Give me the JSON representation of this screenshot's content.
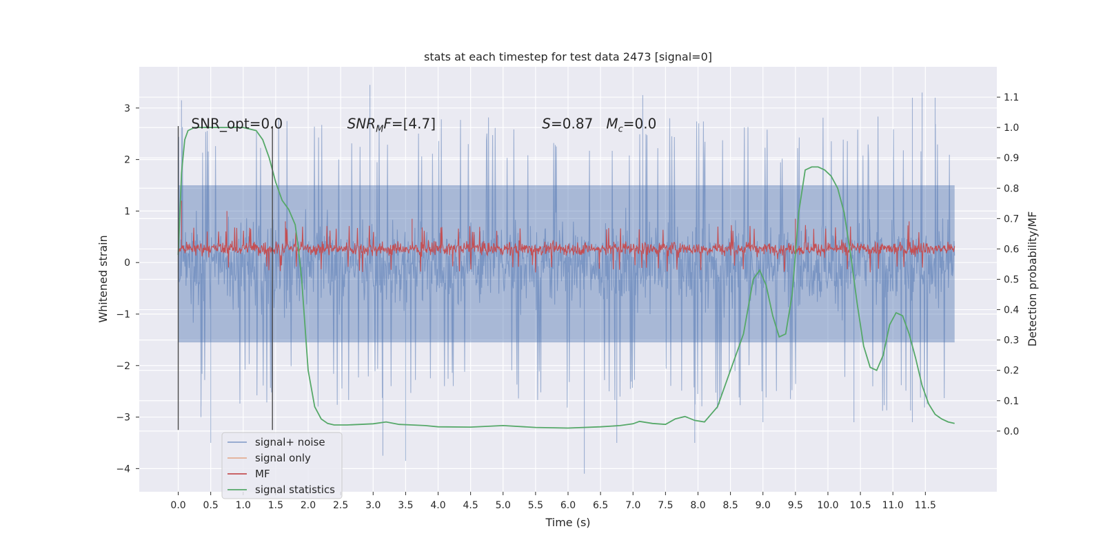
{
  "chart_data": {
    "type": "line",
    "title": "stats at each timestep for test data 2473 [signal=0]",
    "xlabel": "Time (s)",
    "ylabel": "Whitened strain",
    "y2label": "Detection probability/MF",
    "xlim": [
      -0.6,
      12.6
    ],
    "ylim": [
      -4.45,
      3.8
    ],
    "y2lim": [
      -0.2,
      1.2
    ],
    "x_ticks": [
      0.0,
      0.5,
      1.0,
      1.5,
      2.0,
      2.5,
      3.0,
      3.5,
      4.0,
      4.5,
      5.0,
      5.5,
      6.0,
      6.5,
      7.0,
      7.5,
      8.0,
      8.5,
      9.0,
      9.5,
      10.0,
      10.5,
      11.0,
      11.5
    ],
    "x_tick_labels": [
      "0.0",
      "0.5",
      "1.0",
      "1.5",
      "2.0",
      "2.5",
      "3.0",
      "3.5",
      "4.0",
      "4.5",
      "5.0",
      "5.5",
      "6.0",
      "6.5",
      "7.0",
      "7.5",
      "8.0",
      "8.5",
      "9.0",
      "9.5",
      "10.0",
      "10.5",
      "11.0",
      "11.5"
    ],
    "y_ticks": [
      -4,
      -3,
      -2,
      -1,
      0,
      1,
      2,
      3
    ],
    "y_tick_labels": [
      "−4",
      "−3",
      "−2",
      "−1",
      "0",
      "1",
      "2",
      "3"
    ],
    "y2_ticks": [
      0.0,
      0.1,
      0.2,
      0.3,
      0.4,
      0.5,
      0.6,
      0.7,
      0.8,
      0.9,
      1.0,
      1.1
    ],
    "y2_tick_labels": [
      "0.0",
      "0.1",
      "0.2",
      "0.3",
      "0.4",
      "0.5",
      "0.6",
      "0.7",
      "0.8",
      "0.9",
      "1.0",
      "1.1"
    ],
    "grid": true,
    "legend_position": "bottom-left",
    "annotations": [
      {
        "text": "SNR_opt=0.0",
        "x": 0.2,
        "y": 2.6
      },
      {
        "text": "SNR_MF=[4.7]",
        "x": 2.6,
        "y": 2.6
      },
      {
        "text": "S=0.87   M_c=0.0",
        "x": 5.6,
        "y": 2.6
      }
    ],
    "vertical_markers": [
      {
        "x": 0.0,
        "y_from": -3.25,
        "y_to": 2.65
      },
      {
        "x": 1.45,
        "y_from": -3.25,
        "y_to": 2.65
      }
    ],
    "series": [
      {
        "name": "signal+ noise",
        "color": "#4c72b0",
        "axis": "left",
        "style": "dense-noise",
        "x_range": [
          0.0,
          11.95
        ],
        "envelope_typical": [
          -1.55,
          1.5
        ],
        "extremes": [
          [
            0.05,
            3.15
          ],
          [
            0.5,
            -3.5
          ],
          [
            0.35,
            -3.0
          ],
          [
            2.95,
            3.45
          ],
          [
            3.15,
            -3.75
          ],
          [
            3.5,
            -3.85
          ],
          [
            6.25,
            -4.1
          ],
          [
            6.75,
            -3.5
          ],
          [
            7.15,
            3.25
          ],
          [
            7.95,
            -3.5
          ],
          [
            9.0,
            -3.1
          ],
          [
            10.4,
            -3.1
          ],
          [
            11.3,
            -3.1
          ],
          [
            11.3,
            3.2
          ],
          [
            11.45,
            3.3
          ],
          [
            11.65,
            3.2
          ]
        ]
      },
      {
        "name": "signal only",
        "color": "#dd8452",
        "axis": "left",
        "values": []
      },
      {
        "name": "MF",
        "color": "#c44e52",
        "axis": "left",
        "style": "dense-noise",
        "x_range": [
          0.0,
          11.95
        ],
        "envelope_typical": [
          0.0,
          0.55
        ],
        "extremes": [
          [
            0.75,
            1.0
          ],
          [
            0.05,
            1.2
          ],
          [
            3.6,
            0.85
          ],
          [
            1.65,
            0.8
          ],
          [
            9.5,
            0.85
          ],
          [
            11.25,
            0.8
          ]
        ]
      },
      {
        "name": "signal statistics",
        "color": "#55a868",
        "axis": "right",
        "x": [
          0.0,
          0.05,
          0.1,
          0.15,
          0.25,
          0.4,
          0.6,
          0.8,
          1.0,
          1.2,
          1.3,
          1.4,
          1.5,
          1.6,
          1.7,
          1.8,
          1.85,
          1.9,
          1.95,
          2.0,
          2.1,
          2.2,
          2.3,
          2.4,
          2.6,
          2.8,
          3.0,
          3.2,
          3.4,
          3.6,
          3.8,
          4.0,
          4.5,
          5.0,
          5.5,
          6.0,
          6.5,
          6.8,
          7.0,
          7.1,
          7.3,
          7.5,
          7.65,
          7.8,
          7.95,
          8.1,
          8.3,
          8.5,
          8.7,
          8.85,
          8.95,
          9.05,
          9.15,
          9.25,
          9.35,
          9.45,
          9.55,
          9.65,
          9.75,
          9.85,
          9.95,
          10.05,
          10.15,
          10.25,
          10.35,
          10.45,
          10.55,
          10.65,
          10.75,
          10.85,
          10.95,
          11.05,
          11.15,
          11.25,
          11.35,
          11.45,
          11.55,
          11.65,
          11.75,
          11.85,
          11.95
        ],
        "values": [
          0.58,
          0.85,
          0.96,
          0.99,
          1.0,
          1.0,
          1.0,
          1.0,
          1.0,
          0.99,
          0.96,
          0.9,
          0.82,
          0.76,
          0.73,
          0.68,
          0.6,
          0.5,
          0.35,
          0.2,
          0.08,
          0.04,
          0.025,
          0.02,
          0.02,
          0.022,
          0.024,
          0.03,
          0.022,
          0.02,
          0.018,
          0.014,
          0.013,
          0.018,
          0.012,
          0.01,
          0.014,
          0.018,
          0.024,
          0.032,
          0.025,
          0.022,
          0.04,
          0.048,
          0.035,
          0.03,
          0.08,
          0.2,
          0.32,
          0.5,
          0.53,
          0.48,
          0.38,
          0.31,
          0.32,
          0.45,
          0.72,
          0.86,
          0.87,
          0.87,
          0.86,
          0.84,
          0.8,
          0.72,
          0.58,
          0.42,
          0.28,
          0.21,
          0.2,
          0.25,
          0.35,
          0.39,
          0.38,
          0.32,
          0.24,
          0.15,
          0.09,
          0.055,
          0.04,
          0.03,
          0.025
        ]
      }
    ]
  }
}
